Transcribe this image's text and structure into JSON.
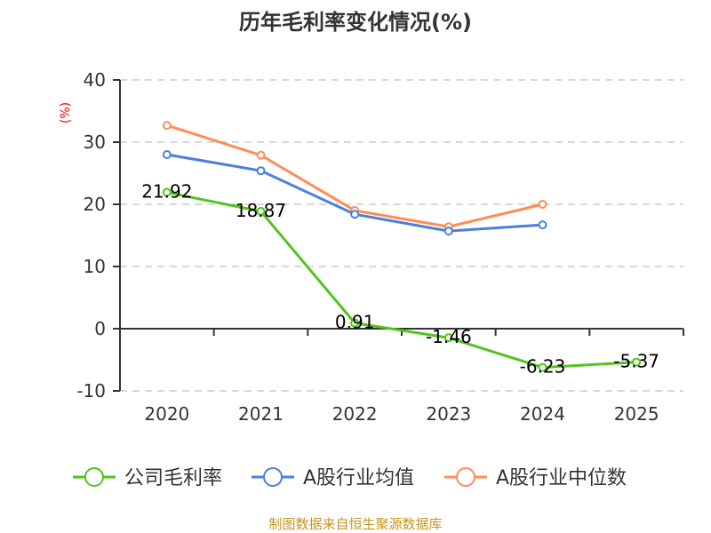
{
  "chart_data": {
    "type": "line",
    "title": "历年毛利率变化情况(%)",
    "ylabel": "(%)",
    "xlabel": "",
    "categories": [
      "2020",
      "2021",
      "2022",
      "2023",
      "2024",
      "2025"
    ],
    "ylim": [
      -10,
      40
    ],
    "yticks": [
      "40",
      "30",
      "20",
      "10",
      "0",
      "-10"
    ],
    "grid": true,
    "legend_position": "bottom",
    "series": [
      {
        "name": "公司毛利率",
        "color": "#52c41a",
        "values": [
          21.92,
          18.87,
          0.91,
          -1.46,
          -6.23,
          -5.37
        ],
        "labels": [
          "21.92",
          "18.87",
          "0.91",
          "-1.46",
          "-6.23",
          "-5.37"
        ]
      },
      {
        "name": "A股行业均值",
        "color": "#4a7fe0",
        "values": [
          28.0,
          25.4,
          18.4,
          15.7,
          16.7,
          null
        ]
      },
      {
        "name": "A股行业中位数",
        "color": "#ff8c55",
        "values": [
          32.7,
          27.9,
          19.0,
          16.4,
          20.0,
          null
        ]
      }
    ]
  },
  "source": "制图数据来自恒生聚源数据库"
}
